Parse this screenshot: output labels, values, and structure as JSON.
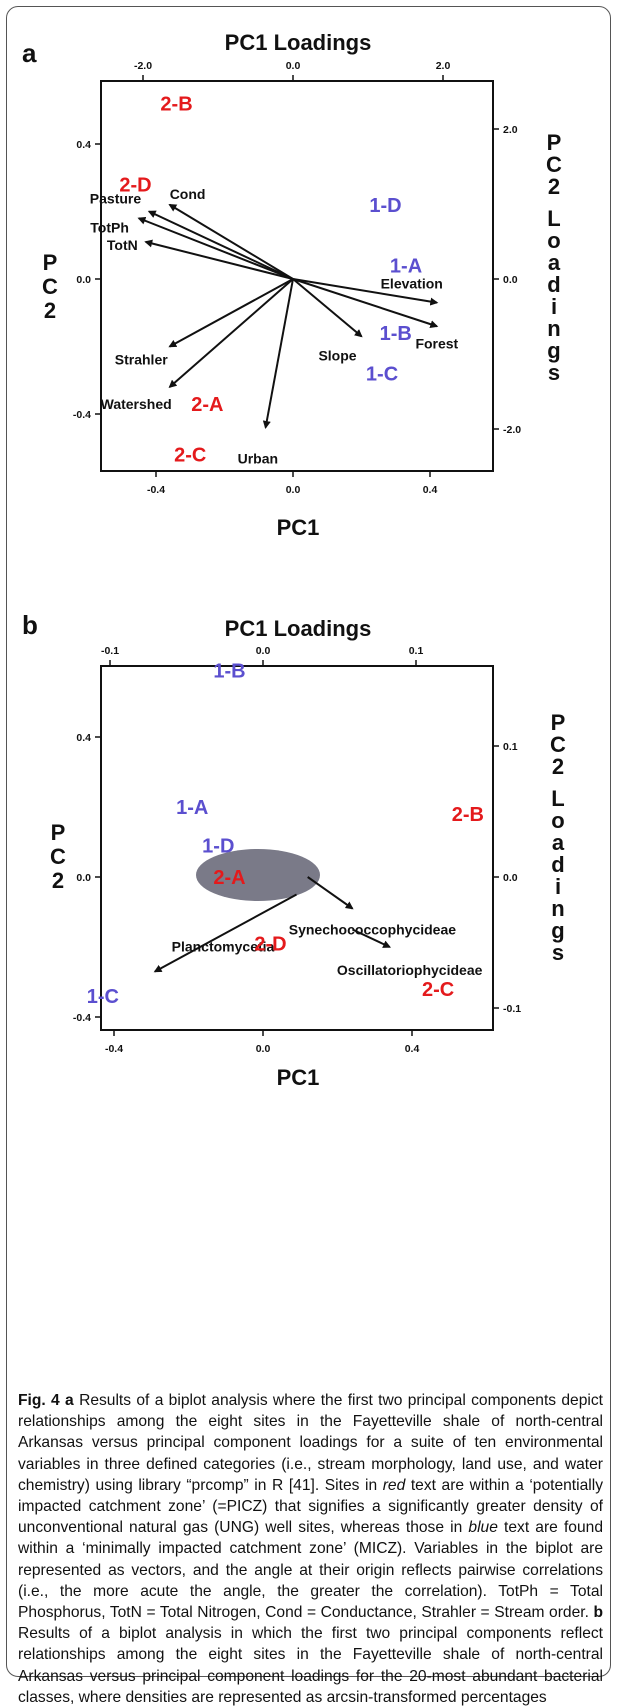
{
  "colors": {
    "impacted": "#e41a1c",
    "minimal": "#5b4fcf",
    "ink": "#111111",
    "ellipse": "#7a7a88"
  },
  "chart_data": [
    {
      "type": "scatter",
      "panel": "a",
      "title": "PC1 Loadings",
      "xlabel": "PC1",
      "ylabel": "PC2",
      "y2label": "PC2 Loadings",
      "xlim": [
        -0.6,
        0.6
      ],
      "ylim": [
        -0.6,
        0.6
      ],
      "x2lim": [
        -2.6,
        2.6
      ],
      "y2lim": [
        -2.6,
        2.6
      ],
      "x_ticks": [
        -0.4,
        0.0,
        0.4
      ],
      "y_ticks": [
        -0.4,
        0.0,
        0.4
      ],
      "x2_ticks": [
        -2.0,
        0.0,
        2.0
      ],
      "y2_ticks": [
        -2.0,
        0.0,
        2.0
      ],
      "x_tick_labels": [
        "-0.4",
        "0.0",
        "0.4"
      ],
      "y_tick_labels": [
        "-0.4",
        "0.0",
        "0.4"
      ],
      "x2_tick_labels": [
        "-2.0",
        "0.0",
        "2.0"
      ],
      "y2_tick_labels": [
        "-2.0",
        "0.0",
        "2.0"
      ],
      "sites": [
        {
          "label": "2-B",
          "x": -0.34,
          "y": 0.52,
          "group": "impacted"
        },
        {
          "label": "2-D",
          "x": -0.46,
          "y": 0.28,
          "group": "impacted"
        },
        {
          "label": "1-D",
          "x": 0.27,
          "y": 0.22,
          "group": "minimal"
        },
        {
          "label": "1-A",
          "x": 0.33,
          "y": 0.04,
          "group": "minimal"
        },
        {
          "label": "1-B",
          "x": 0.3,
          "y": -0.16,
          "group": "minimal"
        },
        {
          "label": "1-C",
          "x": 0.26,
          "y": -0.28,
          "group": "minimal"
        },
        {
          "label": "2-A",
          "x": -0.25,
          "y": -0.37,
          "group": "impacted"
        },
        {
          "label": "2-C",
          "x": -0.3,
          "y": -0.52,
          "group": "impacted"
        }
      ],
      "vectors": [
        {
          "label": "Pasture",
          "x": -0.42,
          "y": 0.2
        },
        {
          "label": "Cond",
          "x": -0.36,
          "y": 0.22
        },
        {
          "label": "TotPh",
          "x": -0.45,
          "y": 0.18
        },
        {
          "label": "TotN",
          "x": -0.43,
          "y": 0.11
        },
        {
          "label": "Strahler",
          "x": -0.36,
          "y": -0.2
        },
        {
          "label": "Watershed",
          "x": -0.36,
          "y": -0.32
        },
        {
          "label": "Urban",
          "x": -0.08,
          "y": -0.44
        },
        {
          "label": "Slope",
          "x": 0.2,
          "y": -0.17
        },
        {
          "label": "Elevation",
          "x": 0.42,
          "y": -0.07
        },
        {
          "label": "Forest",
          "x": 0.42,
          "y": -0.14
        }
      ]
    },
    {
      "type": "scatter",
      "panel": "b",
      "title": "PC1 Loadings",
      "xlabel": "PC1",
      "ylabel": "PC2",
      "y2label": "PC2 Loadings",
      "xlim": [
        -0.45,
        0.6
      ],
      "ylim": [
        -0.45,
        0.7
      ],
      "x2lim": [
        -0.12,
        0.16
      ],
      "y2lim": [
        -0.11,
        0.17
      ],
      "x_ticks": [
        -0.4,
        0.0,
        0.4
      ],
      "y_ticks": [
        -0.4,
        0.0,
        0.4
      ],
      "x2_ticks": [
        -0.1,
        0.0,
        0.1
      ],
      "y2_ticks": [
        -0.1,
        0.0,
        0.1
      ],
      "x_tick_labels": [
        "-0.4",
        "0.0",
        "0.4"
      ],
      "y_tick_labels": [
        "-0.4",
        "0.0",
        "0.4"
      ],
      "x2_tick_labels": [
        "-0.1",
        "0.0",
        "0.1"
      ],
      "y2_tick_labels": [
        "-0.1",
        "0.0",
        "0.1"
      ],
      "sites": [
        {
          "label": "1-B",
          "x": -0.09,
          "y": 0.59,
          "group": "minimal"
        },
        {
          "label": "1-A",
          "x": -0.19,
          "y": 0.2,
          "group": "minimal"
        },
        {
          "label": "1-D",
          "x": -0.12,
          "y": 0.09,
          "group": "minimal"
        },
        {
          "label": "2-A",
          "x": -0.09,
          "y": 0.0,
          "group": "impacted"
        },
        {
          "label": "2-B",
          "x": 0.55,
          "y": 0.18,
          "group": "impacted"
        },
        {
          "label": "2-D",
          "x": 0.02,
          "y": -0.19,
          "group": "impacted"
        },
        {
          "label": "2-C",
          "x": 0.47,
          "y": -0.32,
          "group": "impacted"
        },
        {
          "label": "1-C",
          "x": -0.43,
          "y": -0.34,
          "group": "minimal"
        }
      ],
      "vectors": [
        {
          "label": "Planctomycetia",
          "x": -0.28,
          "y": -0.27
        },
        {
          "label": "Synechococcophycideae",
          "x": 0.22,
          "y": -0.08
        },
        {
          "label": "Oscillatoriophycideae",
          "x": 0.32,
          "y": -0.22
        }
      ]
    }
  ],
  "caption": {
    "fig_label": "Fig. 4",
    "a_label": "a",
    "a_text_1": "Results of a biplot analysis where the first two principal components depict relationships among the eight sites in the Fayetteville shale of north-central Arkansas versus principal component loadings for a suite of ten environmental variables in three defined categories (i.e., stream morphology, land use, and water chemistry) using library “prcomp” in R [41]. Sites in ",
    "red_word": "red",
    "a_text_2": " text are within a ‘potentially impacted catchment zone’ (=PICZ) that signifies a significantly greater density of unconventional natural gas (UNG) well sites, whereas those in ",
    "blue_word": "blue",
    "a_text_3": " text are found within a ‘minimally impacted catchment zone’ (MICZ). Variables in the biplot are represented as vectors, and the angle at their origin reflects pairwise correlations (i.e., the more acute the angle, the greater the correlation). TotPh = Total Phosphorus, TotN = Total Nitrogen, Cond = Conductance, Strahler = Stream order. ",
    "b_label": "b",
    "b_text": " Results of a biplot analysis in which the first two principal components reflect relationships among the eight sites in the Fayetteville shale of north-central Arkansas versus principal component loadings for the 20-most abundant bacterial classes, where densities are represented as arcsin-transformed percentages"
  }
}
